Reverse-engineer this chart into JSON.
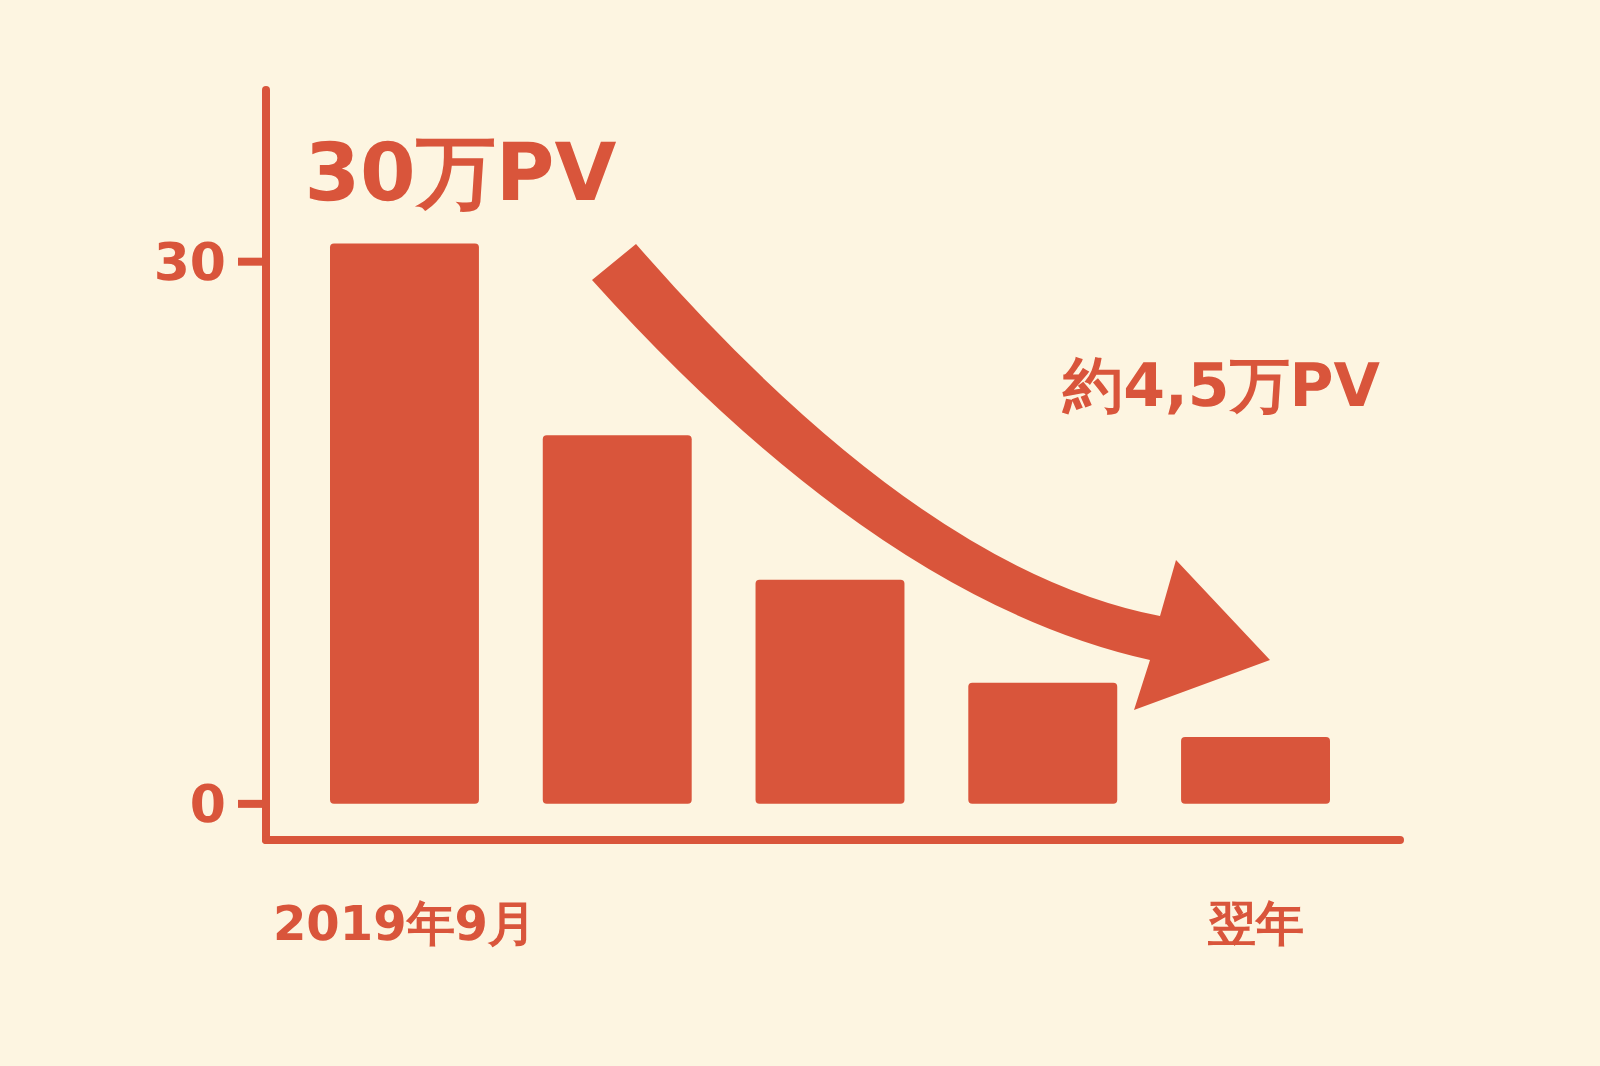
{
  "chart_data": {
    "type": "bar",
    "categories": [
      "2019年9月",
      null,
      null,
      null,
      "翌年"
    ],
    "values": [
      31,
      20.4,
      12.4,
      6.7,
      3.7
    ],
    "color": "#d9553b",
    "ylim": [
      -2,
      39.5
    ],
    "yticks": [
      0,
      30
    ],
    "grid": false,
    "annotations": [
      {
        "text": "30万PV",
        "x": "2019年9月",
        "y": 31
      },
      "約4,5万PV"
    ]
  }
}
